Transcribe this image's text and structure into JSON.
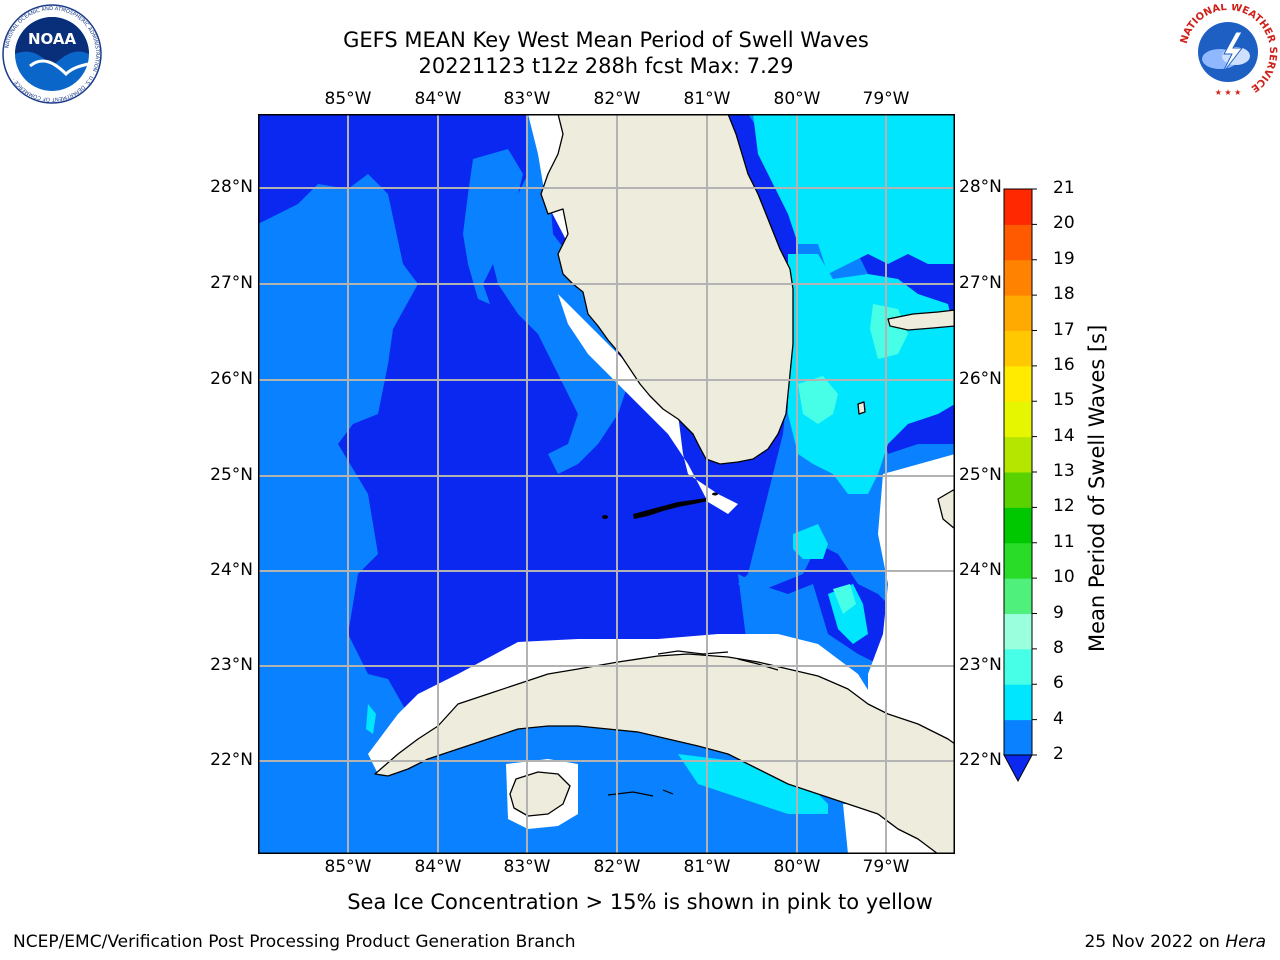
{
  "title": {
    "line1": "GEFS MEAN Key West Mean Period of Swell Waves",
    "line2": "20221123 t12z 288h fcst   Max: 7.29"
  },
  "map": {
    "projection": "lat-lon",
    "lon_ticks": [
      "85°W",
      "84°W",
      "83°W",
      "82°W",
      "81°W",
      "80°W",
      "79°W"
    ],
    "lat_ticks": [
      "28°N",
      "27°N",
      "26°N",
      "25°N",
      "24°N",
      "23°N",
      "22°N"
    ],
    "lon_range": [
      -86.0,
      -78.3
    ],
    "lat_range": [
      21.1,
      28.8
    ],
    "grid": true,
    "land_color": "#eeecdc",
    "no_data_color": "#ffffff",
    "regions": [
      "Florida peninsula",
      "Cuba",
      "Isla de la Juventud",
      "Florida Keys",
      "Bahamas (Grand Bahama, Andros)"
    ]
  },
  "chart_data": {
    "type": "heatmap",
    "title": "GEFS MEAN Key West Mean Period of Swell Waves",
    "max_value": 7.29,
    "colorbar": {
      "label": "Mean Period of Swell Waves [s]",
      "ticks": [
        "2",
        "4",
        "6",
        "8",
        "9",
        "10",
        "11",
        "12",
        "13",
        "14",
        "15",
        "16",
        "17",
        "18",
        "19",
        "20",
        "21"
      ],
      "levels": [
        2,
        4,
        6,
        8,
        9,
        10,
        11,
        12,
        13,
        14,
        15,
        16,
        17,
        18,
        19,
        20,
        21
      ],
      "colors": [
        "#0a28f0",
        "#0a82ff",
        "#00e6ff",
        "#46ffe6",
        "#9affdc",
        "#50f07c",
        "#28dc28",
        "#00c800",
        "#5ad200",
        "#b4e600",
        "#e6f500",
        "#ffeb00",
        "#ffc800",
        "#ffaa00",
        "#ff8200",
        "#ff5a00",
        "#ff2800",
        "#ff0000"
      ],
      "extend": "min"
    },
    "field_summary": {
      "under_2_s": "most of the Gulf of Mexico, Florida Straits and Caribbean edges",
      "2_to_4_s": "western Gulf margin, west Florida shelf, around the Keys and south of Cuba",
      "4_to_6_s": "Atlantic east of Florida and patches near the Bahamas",
      "6_to_8_s": "small patches east of Florida (max 7.29)"
    }
  },
  "note": "Sea Ice Concentration > 15% is shown in pink to yellow",
  "footer": {
    "credit": "NCEP/EMC/Verification Post Processing Product Generation Branch",
    "date": "25 Nov 2022 on ",
    "machine": "Hera"
  },
  "logos": {
    "left": "NOAA",
    "left_ring": "NATIONAL OCEANIC AND ATMOSPHERIC ADMINISTRATION · U.S. DEPARTMENT OF COMMERCE",
    "right_ring": "NATIONAL WEATHER SERVICE"
  }
}
